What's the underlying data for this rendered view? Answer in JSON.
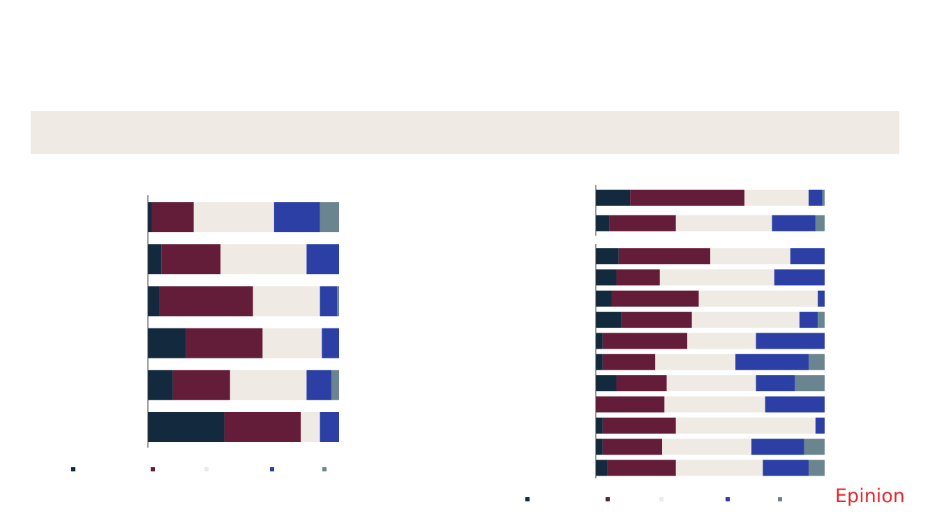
{
  "brand": {
    "logo_text": "Epinion"
  },
  "colors": {
    "categories": [
      "#13293d",
      "#641d39",
      "#efeae3",
      "#2b3fa5",
      "#6a8590"
    ],
    "banner": "#efeae3",
    "brand": "#e5272d",
    "axis": "#333333"
  },
  "chart_data": [
    {
      "type": "bar",
      "orientation": "horizontal",
      "stacked": true,
      "normalized": true,
      "xlim": [
        0,
        100
      ],
      "series_colors": [
        "#13293d",
        "#641d39",
        "#efeae3",
        "#2b3fa5",
        "#6a8590"
      ],
      "rows": [
        [
          2,
          22,
          42,
          24,
          10
        ],
        [
          7,
          31,
          45,
          17,
          0
        ],
        [
          6,
          49,
          35,
          9,
          1
        ],
        [
          20,
          40,
          31,
          9,
          0
        ],
        [
          13,
          30,
          40,
          13,
          4
        ],
        [
          40,
          40,
          10,
          10,
          0
        ]
      ]
    },
    {
      "type": "bar",
      "orientation": "horizontal",
      "stacked": true,
      "normalized": true,
      "xlim": [
        0,
        100
      ],
      "series_colors": [
        "#13293d",
        "#641d39",
        "#efeae3",
        "#2b3fa5",
        "#6a8590"
      ],
      "groups": [
        [
          [
            15,
            50,
            28,
            6,
            1
          ],
          [
            6,
            29,
            42,
            19,
            4
          ]
        ],
        [
          [
            10,
            40,
            35,
            15,
            0
          ],
          [
            9,
            19,
            50,
            22,
            0
          ],
          [
            7,
            38,
            52,
            3,
            0
          ],
          [
            11,
            31,
            47,
            8,
            3
          ],
          [
            3,
            37,
            30,
            30,
            0
          ],
          [
            3,
            23,
            35,
            32,
            7
          ],
          [
            9,
            22,
            39,
            17,
            13
          ],
          [
            0,
            30,
            44,
            26,
            0
          ],
          [
            3,
            32,
            61,
            4,
            0
          ],
          [
            3,
            26,
            39,
            23,
            9
          ],
          [
            5,
            30,
            38,
            20,
            7
          ]
        ]
      ]
    }
  ]
}
